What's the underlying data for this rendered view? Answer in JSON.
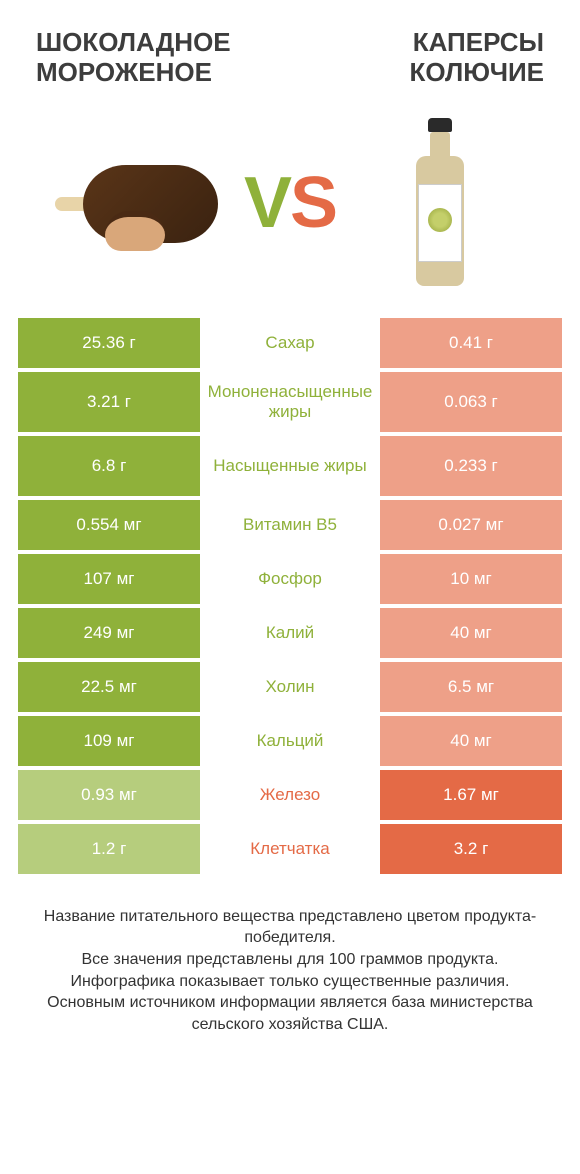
{
  "colors": {
    "green": "#8fb13a",
    "green_fade": "#b6cd7d",
    "orange": "#e46a46",
    "orange_fade": "#eea088"
  },
  "header": {
    "left_line1": "ШОКОЛАДНОЕ",
    "left_line2": "МОРОЖЕНОЕ",
    "right_line1": "КАПЕРСЫ",
    "right_line2": "КОЛЮЧИЕ"
  },
  "vs": {
    "v": "V",
    "s": "S"
  },
  "rows": [
    {
      "left": "25.36 г",
      "mid": "Сахар",
      "right": "0.41 г",
      "winner": "left",
      "tall": false
    },
    {
      "left": "3.21 г",
      "mid": "Мононенасыщенные жиры",
      "right": "0.063 г",
      "winner": "left",
      "tall": true
    },
    {
      "left": "6.8 г",
      "mid": "Насыщенные жиры",
      "right": "0.233 г",
      "winner": "left",
      "tall": true
    },
    {
      "left": "0.554 мг",
      "mid": "Витамин B5",
      "right": "0.027 мг",
      "winner": "left",
      "tall": false
    },
    {
      "left": "107 мг",
      "mid": "Фосфор",
      "right": "10 мг",
      "winner": "left",
      "tall": false
    },
    {
      "left": "249 мг",
      "mid": "Калий",
      "right": "40 мг",
      "winner": "left",
      "tall": false
    },
    {
      "left": "22.5 мг",
      "mid": "Холин",
      "right": "6.5 мг",
      "winner": "left",
      "tall": false
    },
    {
      "left": "109 мг",
      "mid": "Кальций",
      "right": "40 мг",
      "winner": "left",
      "tall": false
    },
    {
      "left": "0.93 мг",
      "mid": "Железо",
      "right": "1.67 мг",
      "winner": "right",
      "tall": false
    },
    {
      "left": "1.2 г",
      "mid": "Клетчатка",
      "right": "3.2 г",
      "winner": "right",
      "tall": false
    }
  ],
  "footnote": "Название питательного вещества представлено цветом продукта-победителя.\nВсе значения представлены для 100 граммов продукта.\nИнфографика показывает только существенные различия.\nОсновным источником информации является база министерства сельского хозяйства США."
}
